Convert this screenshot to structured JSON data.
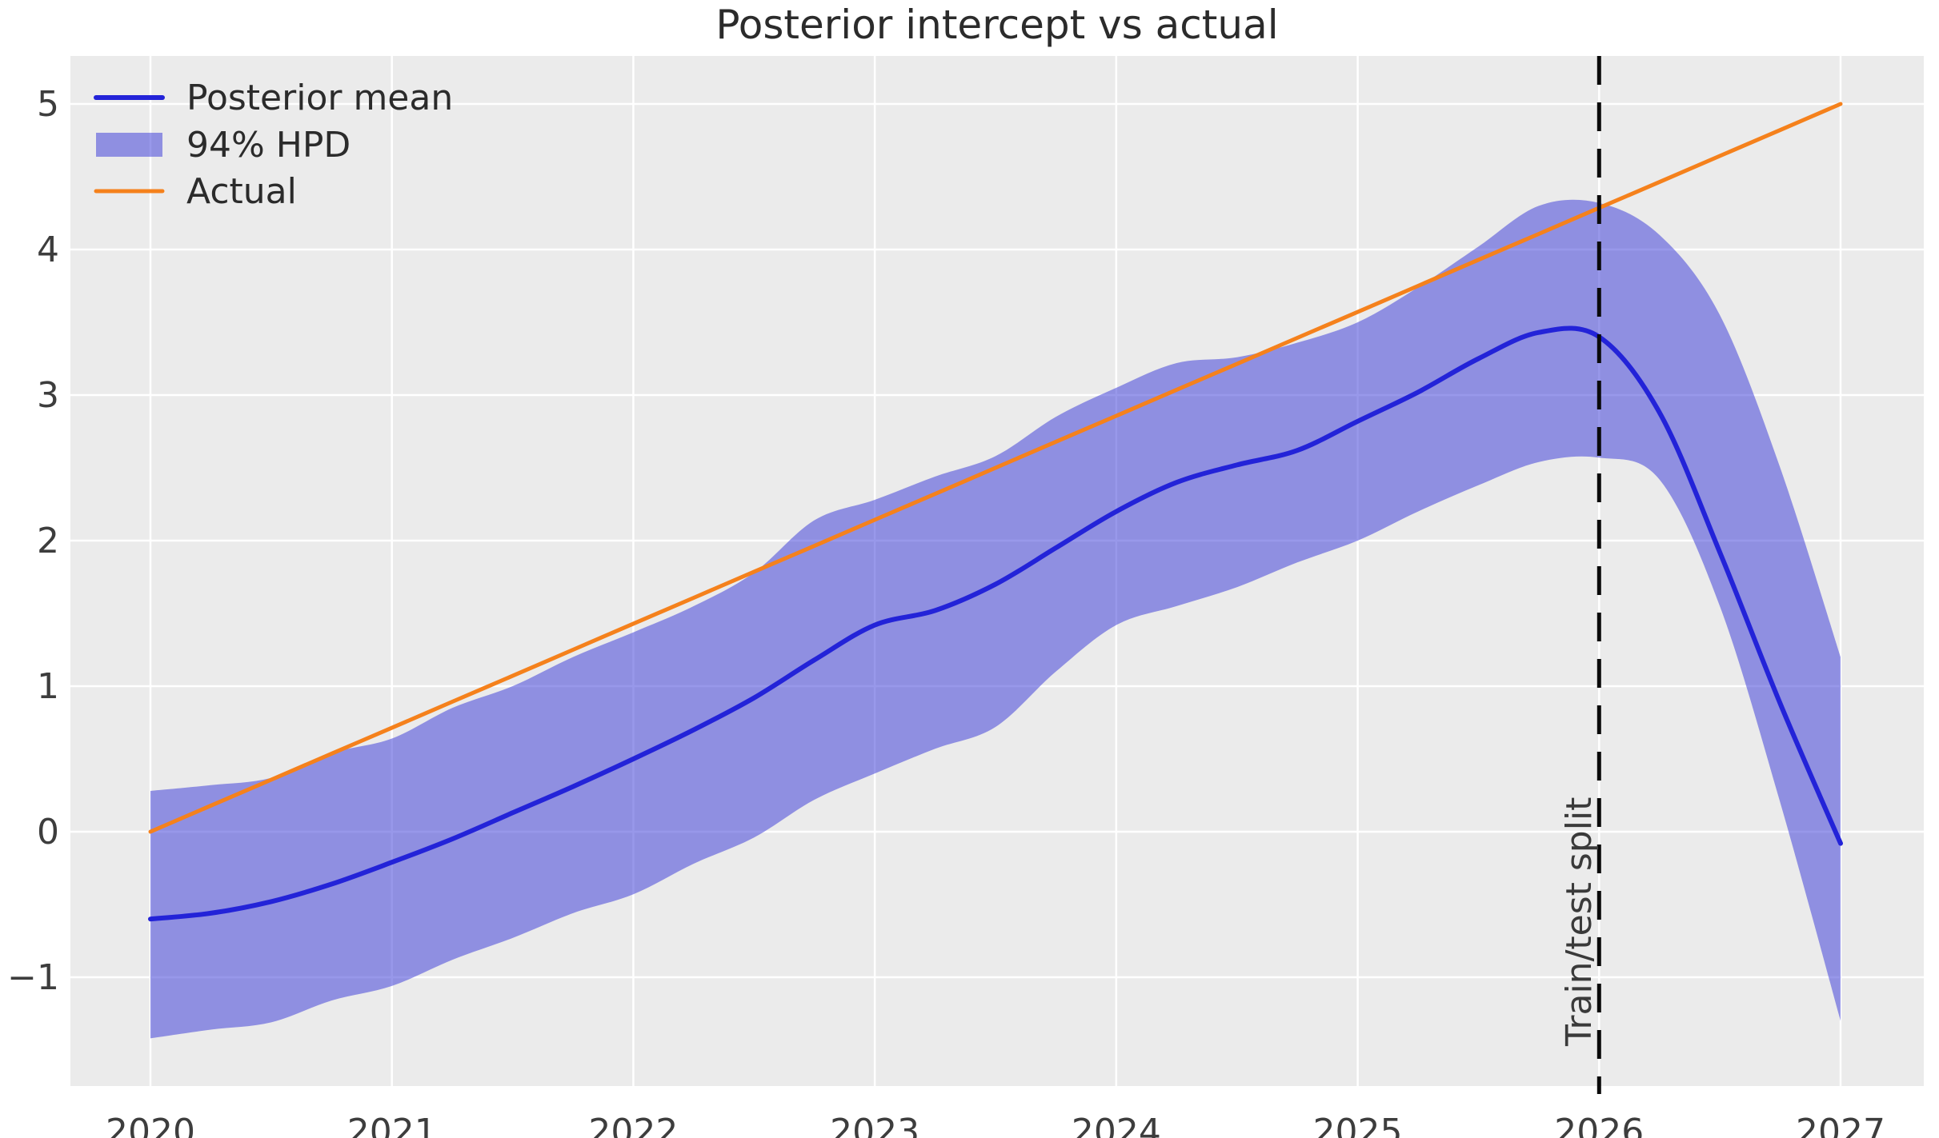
{
  "title": "Posterior intercept vs actual",
  "chart_data": {
    "type": "line",
    "title": "Posterior intercept vs actual",
    "xlabel": "",
    "ylabel": "",
    "background_color": "#ebebeb",
    "grid": true,
    "grid_color": "#ffffff",
    "legend_position": "upper left",
    "x_ticks": [
      2020,
      2021,
      2022,
      2023,
      2024,
      2025,
      2026,
      2027
    ],
    "y_ticks": [
      -1,
      0,
      1,
      2,
      3,
      4,
      5
    ],
    "y_tick_labels": [
      "−1",
      "0",
      "1",
      "2",
      "3",
      "4",
      "5"
    ],
    "xlim": [
      2019.67,
      2027.34
    ],
    "ylim": [
      -1.75,
      5.33
    ],
    "x": [
      2020.0,
      2020.25,
      2020.5,
      2020.75,
      2021.0,
      2021.25,
      2021.5,
      2021.75,
      2022.0,
      2022.25,
      2022.5,
      2022.75,
      2023.0,
      2023.25,
      2023.5,
      2023.75,
      2024.0,
      2024.25,
      2024.5,
      2024.75,
      2025.0,
      2025.25,
      2025.5,
      2025.75,
      2026.0,
      2026.25,
      2026.5,
      2026.75,
      2027.0
    ],
    "series": [
      {
        "name": "Posterior mean",
        "kind": "line",
        "color": "#2323d8",
        "width": 6,
        "values": [
          -0.6,
          -0.56,
          -0.48,
          -0.36,
          -0.21,
          -0.05,
          0.13,
          0.31,
          0.5,
          0.7,
          0.92,
          1.18,
          1.42,
          1.52,
          1.7,
          1.95,
          2.2,
          2.4,
          2.52,
          2.62,
          2.82,
          3.02,
          3.25,
          3.43,
          3.4,
          2.88,
          1.92,
          0.88,
          -0.08
        ]
      },
      {
        "name": "94% HPD",
        "kind": "band",
        "color": "rgba(68,68,216,0.55)",
        "upper": [
          0.28,
          0.32,
          0.37,
          0.54,
          0.64,
          0.85,
          1.0,
          1.2,
          1.37,
          1.55,
          1.78,
          2.14,
          2.28,
          2.44,
          2.58,
          2.85,
          3.05,
          3.22,
          3.26,
          3.36,
          3.5,
          3.74,
          4.02,
          4.3,
          4.32,
          4.1,
          3.55,
          2.5,
          1.2
        ],
        "lower": [
          -1.42,
          -1.36,
          -1.31,
          -1.16,
          -1.06,
          -0.88,
          -0.73,
          -0.56,
          -0.43,
          -0.22,
          -0.04,
          0.22,
          0.4,
          0.57,
          0.72,
          1.1,
          1.42,
          1.55,
          1.68,
          1.85,
          2.0,
          2.2,
          2.38,
          2.54,
          2.57,
          2.42,
          1.55,
          0.2,
          -1.3
        ]
      },
      {
        "name": "Actual",
        "kind": "line",
        "color": "#f5811c",
        "width": 5,
        "values": [
          0.0,
          0.179,
          0.357,
          0.536,
          0.714,
          0.893,
          1.071,
          1.25,
          1.429,
          1.607,
          1.786,
          1.964,
          2.143,
          2.321,
          2.5,
          2.679,
          2.857,
          3.036,
          3.214,
          3.393,
          3.571,
          3.75,
          3.929,
          4.107,
          4.286,
          4.464,
          4.643,
          4.821,
          5.0
        ]
      }
    ],
    "annotations": {
      "vline_x": 2026,
      "vline_style": "dashed",
      "vline_color": "#0a0a0a",
      "vline_label": "Train/test split"
    },
    "legend": [
      {
        "label": "Posterior mean"
      },
      {
        "label": "94% HPD"
      },
      {
        "label": "Actual"
      }
    ],
    "text_color": "#2b2b2b",
    "tick_color": "#3d3d3d"
  }
}
